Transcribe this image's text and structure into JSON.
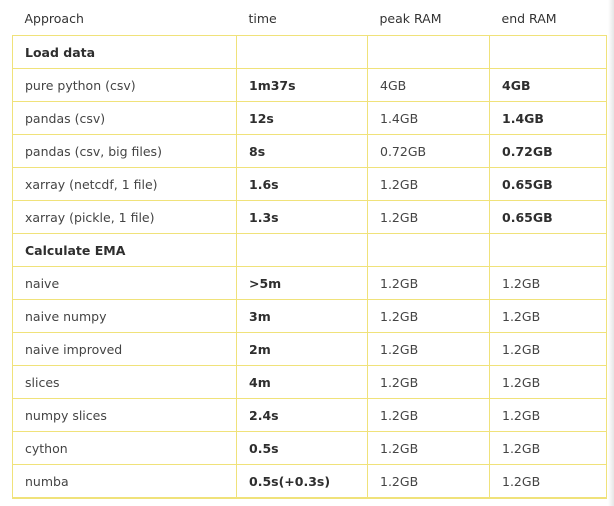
{
  "table": {
    "headers": [
      "Approach",
      "time",
      "peak RAM",
      "end RAM"
    ],
    "rows": [
      {
        "section": "Load data"
      },
      {
        "cells": [
          "pure python (csv)",
          "1m37s",
          "4GB",
          "4GB"
        ],
        "bold": [
          false,
          true,
          false,
          true
        ]
      },
      {
        "cells": [
          "pandas (csv)",
          "12s",
          "1.4GB",
          "1.4GB"
        ],
        "bold": [
          false,
          true,
          false,
          true
        ]
      },
      {
        "cells": [
          "pandas (csv, big files)",
          "8s",
          "0.72GB",
          "0.72GB"
        ],
        "bold": [
          false,
          true,
          false,
          true
        ]
      },
      {
        "cells": [
          "xarray (netcdf, 1 file)",
          "1.6s",
          "1.2GB",
          "0.65GB"
        ],
        "bold": [
          false,
          true,
          false,
          true
        ]
      },
      {
        "cells": [
          "xarray (pickle, 1 file)",
          "1.3s",
          "1.2GB",
          "0.65GB"
        ],
        "bold": [
          false,
          true,
          false,
          true
        ]
      },
      {
        "section": "Calculate EMA"
      },
      {
        "cells": [
          "naive",
          ">5m",
          "1.2GB",
          "1.2GB"
        ],
        "bold": [
          false,
          true,
          false,
          false
        ]
      },
      {
        "cells": [
          "naive numpy",
          "3m",
          "1.2GB",
          "1.2GB"
        ],
        "bold": [
          false,
          true,
          false,
          false
        ]
      },
      {
        "cells": [
          "naive improved",
          "2m",
          "1.2GB",
          "1.2GB"
        ],
        "bold": [
          false,
          true,
          false,
          false
        ]
      },
      {
        "cells": [
          "slices",
          "4m",
          "1.2GB",
          "1.2GB"
        ],
        "bold": [
          false,
          true,
          false,
          false
        ]
      },
      {
        "cells": [
          "numpy slices",
          "2.4s",
          "1.2GB",
          "1.2GB"
        ],
        "bold": [
          false,
          true,
          false,
          false
        ]
      },
      {
        "cells": [
          "cython",
          "0.5s",
          "1.2GB",
          "1.2GB"
        ],
        "bold": [
          false,
          true,
          false,
          false
        ]
      },
      {
        "cells": [
          "numba",
          "0.5s(+0.3s)",
          "1.2GB",
          "1.2GB"
        ],
        "bold": [
          false,
          true,
          false,
          false
        ]
      }
    ]
  },
  "colors": {
    "border": "#f0e27a",
    "text": "#3a3a3a"
  }
}
